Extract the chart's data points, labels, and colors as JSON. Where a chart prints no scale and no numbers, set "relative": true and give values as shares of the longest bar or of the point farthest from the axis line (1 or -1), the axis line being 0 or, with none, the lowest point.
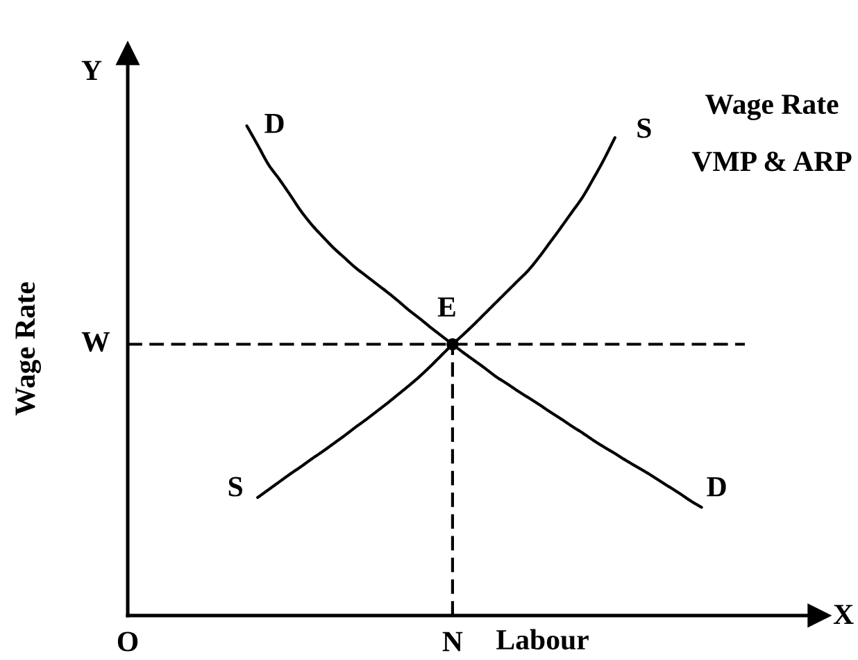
{
  "chart_data": {
    "type": "line",
    "relative": true,
    "xlabel": "Labour",
    "ylabel": "Wage Rate",
    "categories": [
      "O",
      null,
      null,
      null,
      null,
      null,
      null,
      null,
      null,
      null,
      null,
      null,
      null,
      null,
      null,
      null,
      null,
      null,
      null,
      null,
      null,
      null,
      null,
      null,
      null,
      null,
      null,
      null,
      null,
      null,
      "N",
      null,
      null,
      null,
      null,
      null,
      null,
      null,
      null,
      null,
      null,
      null,
      null,
      null,
      null,
      null,
      null,
      null,
      null,
      null,
      null,
      null,
      null,
      null,
      null,
      null,
      null,
      null,
      null,
      null,
      null,
      null,
      null,
      null,
      null
    ],
    "series": [
      {
        "name": "D",
        "color": "#000000",
        "values": [
          null,
          null,
          null,
          null,
          null,
          null,
          null,
          null,
          null,
          null,
          null,
          1.0,
          0.961,
          0.921,
          0.891,
          0.859,
          0.826,
          0.798,
          0.774,
          0.751,
          0.731,
          0.711,
          0.694,
          0.677,
          0.66,
          0.642,
          0.623,
          0.606,
          0.588,
          0.571,
          0.554,
          0.537,
          0.521,
          0.505,
          0.488,
          0.474,
          0.459,
          0.445,
          0.431,
          0.416,
          0.402,
          0.387,
          0.373,
          0.358,
          0.344,
          0.331,
          0.317,
          0.304,
          0.291,
          0.277,
          0.263,
          0.249,
          0.234,
          0.221,
          null,
          null,
          null,
          null,
          null,
          null,
          null,
          null,
          null,
          null,
          null
        ]
      },
      {
        "name": "S",
        "color": "#000000",
        "values": [
          null,
          null,
          null,
          null,
          null,
          null,
          null,
          null,
          null,
          null,
          null,
          null,
          0.241,
          0.257,
          0.273,
          0.289,
          0.304,
          0.32,
          0.335,
          0.351,
          0.367,
          0.384,
          0.4,
          0.417,
          0.434,
          0.452,
          0.47,
          0.489,
          0.51,
          0.532,
          0.554,
          0.574,
          0.595,
          0.617,
          0.639,
          0.661,
          0.683,
          0.705,
          0.732,
          0.762,
          0.792,
          0.823,
          0.854,
          0.892,
          0.932,
          0.976,
          null,
          null,
          null,
          null,
          null,
          null,
          null,
          null,
          null,
          null,
          null,
          null,
          null,
          null,
          null,
          null,
          null,
          null,
          null
        ]
      },
      {
        "name": "W",
        "color": "#000000",
        "line_style": "dashed",
        "values": [
          0.554,
          0.554,
          0.554,
          0.554,
          0.554,
          0.554,
          0.554,
          0.554,
          0.554,
          0.554,
          0.554,
          0.554,
          0.554,
          0.554,
          0.554,
          0.554,
          0.554,
          0.554,
          0.554,
          0.554,
          0.554,
          0.554,
          0.554,
          0.554,
          0.554,
          0.554,
          0.554,
          0.554,
          0.554,
          0.554,
          0.554,
          0.554,
          0.554,
          0.554,
          0.554,
          0.554,
          0.554,
          0.554,
          0.554,
          0.554,
          0.554,
          0.554,
          0.554,
          0.554,
          0.554,
          0.554,
          0.554,
          0.554,
          0.554,
          0.554,
          0.554,
          0.554,
          0.554,
          0.554,
          0.554,
          0.554,
          0.554,
          0.554,
          null,
          null,
          null,
          null,
          null,
          null,
          null
        ]
      },
      {
        "name": "E",
        "type": "lollipop",
        "color": "#000000",
        "line_style": "dashed",
        "marker": "circle",
        "values": [
          null,
          null,
          null,
          null,
          null,
          null,
          null,
          null,
          null,
          null,
          null,
          null,
          null,
          null,
          null,
          null,
          null,
          null,
          null,
          null,
          null,
          null,
          null,
          null,
          null,
          null,
          null,
          null,
          null,
          null,
          0.554,
          null,
          null,
          null,
          null,
          null,
          null,
          null,
          null,
          null,
          null,
          null,
          null,
          null,
          null,
          null,
          null,
          null,
          null,
          null,
          null,
          null,
          null,
          null,
          null,
          null,
          null,
          null,
          null,
          null,
          null,
          null,
          null,
          null,
          null
        ]
      }
    ],
    "annotations": [
      "Y",
      "X",
      "Wage Rate",
      "VMP & ARP"
    ]
  }
}
